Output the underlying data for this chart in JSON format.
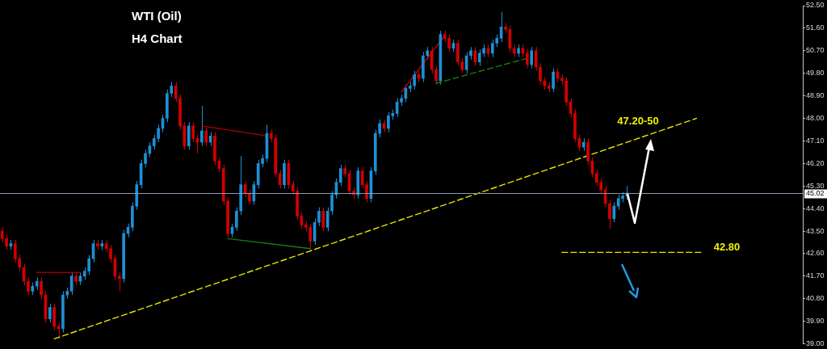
{
  "chart_data": {
    "type": "candlestick",
    "title": "WTI (Oil)",
    "subtitle": "H4 Chart",
    "categories": [
      null,
      null,
      null,
      null,
      null,
      null,
      null,
      null,
      null,
      null,
      null,
      null,
      null,
      null,
      null,
      null,
      null,
      null,
      null,
      null,
      null,
      null,
      null,
      null,
      null,
      null,
      null,
      null,
      null,
      null,
      null,
      null,
      null,
      null,
      null,
      null,
      null,
      null,
      null,
      null,
      null,
      null,
      null,
      null,
      null,
      null,
      null,
      null,
      null,
      null,
      null,
      null,
      null,
      null,
      null,
      null,
      null,
      null,
      null,
      null,
      null,
      null,
      null,
      null,
      null,
      null,
      null,
      null,
      null,
      null,
      null,
      null,
      null,
      null,
      null,
      null,
      null,
      null,
      null,
      null,
      null,
      null,
      null,
      null,
      null,
      null,
      null,
      null,
      null,
      null,
      null,
      null,
      null,
      null,
      null,
      null,
      null,
      null,
      null,
      null,
      null,
      null,
      null,
      null,
      null,
      null,
      null,
      null,
      null,
      null,
      null,
      null,
      null,
      null,
      null,
      null,
      null,
      null,
      null,
      null,
      null,
      null,
      null,
      null,
      null,
      null,
      null,
      null,
      null,
      null,
      null,
      null,
      null,
      null,
      null,
      null,
      null,
      null,
      null,
      null,
      null,
      null,
      null,
      null,
      null,
      null,
      null,
      null,
      null,
      null,
      null,
      null,
      null,
      null,
      null,
      null,
      null,
      null,
      null,
      null,
      null,
      null,
      null,
      null,
      null,
      null,
      null,
      null,
      null,
      null,
      null,
      null,
      null,
      null,
      null,
      null,
      null,
      null,
      null,
      null,
      null,
      null,
      null,
      null,
      null
    ],
    "ohlc": [
      [
        43.5,
        43.65,
        43.05,
        43.2
      ],
      [
        43.2,
        43.35,
        42.75,
        42.9
      ],
      [
        42.9,
        43.15,
        42.75,
        43.0
      ],
      [
        43.0,
        43.15,
        42.25,
        42.4
      ],
      [
        42.4,
        42.55,
        41.9,
        42.05
      ],
      [
        42.05,
        42.2,
        41.35,
        41.5
      ],
      [
        41.5,
        41.65,
        40.95,
        41.1
      ],
      [
        41.1,
        41.45,
        40.95,
        41.3
      ],
      [
        41.3,
        41.65,
        41.15,
        41.5
      ],
      [
        41.5,
        41.65,
        40.8,
        40.95
      ],
      [
        40.95,
        41.1,
        39.85,
        40.0
      ],
      [
        40.0,
        40.6,
        39.85,
        40.45
      ],
      [
        40.45,
        40.6,
        39.55,
        39.7
      ],
      [
        39.7,
        39.85,
        39.2,
        39.6
      ],
      [
        39.6,
        41.1,
        39.45,
        40.95
      ],
      [
        40.95,
        41.25,
        40.8,
        41.1
      ],
      [
        41.1,
        41.85,
        40.95,
        41.7
      ],
      [
        41.7,
        41.85,
        41.35,
        41.5
      ],
      [
        41.5,
        41.85,
        41.35,
        41.7
      ],
      [
        41.7,
        42.05,
        41.55,
        41.9
      ],
      [
        41.9,
        42.55,
        41.75,
        42.4
      ],
      [
        42.4,
        43.15,
        42.25,
        43.0
      ],
      [
        43.0,
        43.15,
        42.75,
        42.9
      ],
      [
        42.9,
        43.15,
        42.75,
        43.0
      ],
      [
        43.0,
        43.15,
        42.65,
        42.8
      ],
      [
        42.8,
        42.95,
        42.25,
        42.4
      ],
      [
        42.4,
        42.55,
        41.55,
        41.7
      ],
      [
        41.7,
        41.85,
        41.1,
        41.6
      ],
      [
        41.6,
        43.55,
        41.45,
        43.4
      ],
      [
        43.4,
        43.8,
        43.25,
        43.65
      ],
      [
        43.65,
        44.65,
        43.5,
        44.5
      ],
      [
        44.5,
        45.5,
        44.35,
        45.35
      ],
      [
        45.35,
        46.35,
        45.2,
        46.2
      ],
      [
        46.2,
        46.75,
        46.05,
        46.6
      ],
      [
        46.6,
        47.05,
        46.45,
        46.9
      ],
      [
        46.9,
        47.35,
        46.75,
        47.2
      ],
      [
        47.2,
        47.75,
        47.05,
        47.6
      ],
      [
        47.6,
        48.15,
        47.45,
        48.0
      ],
      [
        48.0,
        49.15,
        47.85,
        49.0
      ],
      [
        49.0,
        49.45,
        48.85,
        49.3
      ],
      [
        49.3,
        49.45,
        48.65,
        48.8
      ],
      [
        48.8,
        48.95,
        47.55,
        47.7
      ],
      [
        47.7,
        47.85,
        46.75,
        46.9
      ],
      [
        46.9,
        47.85,
        46.75,
        47.7
      ],
      [
        47.7,
        47.85,
        47.05,
        47.2
      ],
      [
        47.2,
        47.35,
        46.6,
        47.05
      ],
      [
        47.05,
        48.5,
        46.9,
        47.5
      ],
      [
        47.5,
        47.65,
        46.9,
        47.05
      ],
      [
        47.05,
        47.45,
        46.9,
        47.3
      ],
      [
        47.3,
        47.45,
        46.15,
        46.3
      ],
      [
        46.3,
        46.45,
        45.85,
        46.0
      ],
      [
        46.0,
        46.15,
        44.55,
        44.7
      ],
      [
        44.7,
        44.85,
        43.25,
        43.4
      ],
      [
        43.4,
        43.8,
        43.25,
        43.65
      ],
      [
        43.65,
        44.45,
        43.5,
        44.3
      ],
      [
        44.3,
        46.5,
        44.15,
        45.35
      ],
      [
        45.35,
        45.5,
        44.85,
        45.0
      ],
      [
        45.0,
        45.15,
        44.55,
        44.7
      ],
      [
        44.7,
        45.5,
        44.55,
        45.35
      ],
      [
        45.35,
        46.35,
        45.2,
        46.2
      ],
      [
        46.2,
        46.55,
        46.05,
        46.4
      ],
      [
        46.4,
        47.75,
        46.25,
        47.4
      ],
      [
        47.4,
        47.55,
        47.05,
        47.2
      ],
      [
        47.2,
        47.35,
        45.65,
        45.8
      ],
      [
        45.8,
        45.95,
        45.2,
        45.35
      ],
      [
        45.35,
        46.35,
        45.2,
        46.2
      ],
      [
        46.2,
        46.35,
        45.2,
        45.35
      ],
      [
        45.35,
        45.5,
        44.95,
        45.1
      ],
      [
        45.1,
        45.25,
        43.95,
        44.1
      ],
      [
        44.1,
        44.25,
        43.6,
        43.75
      ],
      [
        43.75,
        43.9,
        43.5,
        43.65
      ],
      [
        43.65,
        43.8,
        42.8,
        43.1
      ],
      [
        43.1,
        44.0,
        42.95,
        43.85
      ],
      [
        43.85,
        44.45,
        43.7,
        44.3
      ],
      [
        44.3,
        44.45,
        43.5,
        43.65
      ],
      [
        43.65,
        44.45,
        43.5,
        44.3
      ],
      [
        44.3,
        45.1,
        44.15,
        44.95
      ],
      [
        44.95,
        45.6,
        44.8,
        45.45
      ],
      [
        45.45,
        46.15,
        45.3,
        46.0
      ],
      [
        46.0,
        46.15,
        45.65,
        45.8
      ],
      [
        45.8,
        45.95,
        44.95,
        45.1
      ],
      [
        45.1,
        45.25,
        44.8,
        44.95
      ],
      [
        44.95,
        46.05,
        44.8,
        45.9
      ],
      [
        45.9,
        46.05,
        45.2,
        45.35
      ],
      [
        45.35,
        45.5,
        44.65,
        44.8
      ],
      [
        44.8,
        46.05,
        44.65,
        45.9
      ],
      [
        45.9,
        47.55,
        45.75,
        47.4
      ],
      [
        47.4,
        47.95,
        47.25,
        47.8
      ],
      [
        47.8,
        47.95,
        47.45,
        47.6
      ],
      [
        47.6,
        48.25,
        47.45,
        48.1
      ],
      [
        48.1,
        48.35,
        47.95,
        48.2
      ],
      [
        48.2,
        48.8,
        48.05,
        48.65
      ],
      [
        48.65,
        48.95,
        48.5,
        48.8
      ],
      [
        48.8,
        49.35,
        48.65,
        49.2
      ],
      [
        49.2,
        49.45,
        49.05,
        49.3
      ],
      [
        49.3,
        49.9,
        49.15,
        49.75
      ],
      [
        49.75,
        49.9,
        49.45,
        49.6
      ],
      [
        49.6,
        50.65,
        49.45,
        50.5
      ],
      [
        50.5,
        50.85,
        50.35,
        50.7
      ],
      [
        50.7,
        50.85,
        49.8,
        49.95
      ],
      [
        49.95,
        50.1,
        49.35,
        49.5
      ],
      [
        49.5,
        51.5,
        49.35,
        51.35
      ],
      [
        51.35,
        51.5,
        51.05,
        51.2
      ],
      [
        51.2,
        51.35,
        50.65,
        50.8
      ],
      [
        50.8,
        51.15,
        50.65,
        51.0
      ],
      [
        51.0,
        51.15,
        50.1,
        50.25
      ],
      [
        50.25,
        50.4,
        49.8,
        49.95
      ],
      [
        49.95,
        50.65,
        49.8,
        50.5
      ],
      [
        50.5,
        50.85,
        50.35,
        50.7
      ],
      [
        50.7,
        50.85,
        50.1,
        50.25
      ],
      [
        50.25,
        50.75,
        50.1,
        50.6
      ],
      [
        50.6,
        50.95,
        50.45,
        50.8
      ],
      [
        50.8,
        50.95,
        50.45,
        50.6
      ],
      [
        50.6,
        51.15,
        50.45,
        51.0
      ],
      [
        51.0,
        51.35,
        50.85,
        51.2
      ],
      [
        51.2,
        52.25,
        51.05,
        51.65
      ],
      [
        51.65,
        51.8,
        51.4,
        51.55
      ],
      [
        51.55,
        51.7,
        50.65,
        50.8
      ],
      [
        50.8,
        50.95,
        50.45,
        50.6
      ],
      [
        50.6,
        50.95,
        50.45,
        50.8
      ],
      [
        50.8,
        50.95,
        50.45,
        50.6
      ],
      [
        50.6,
        50.75,
        50.0,
        50.15
      ],
      [
        50.15,
        50.85,
        50.0,
        50.7
      ],
      [
        50.7,
        50.85,
        49.9,
        50.05
      ],
      [
        50.05,
        50.2,
        49.35,
        49.5
      ],
      [
        49.5,
        49.65,
        49.15,
        49.3
      ],
      [
        49.3,
        49.45,
        49.05,
        49.2
      ],
      [
        49.2,
        50.0,
        49.05,
        49.85
      ],
      [
        49.85,
        50.0,
        49.45,
        49.6
      ],
      [
        49.6,
        49.75,
        49.35,
        49.5
      ],
      [
        49.5,
        49.65,
        48.5,
        48.65
      ],
      [
        48.65,
        48.8,
        48.05,
        48.2
      ],
      [
        48.2,
        48.35,
        47.05,
        47.2
      ],
      [
        47.2,
        47.35,
        46.7,
        46.85
      ],
      [
        46.85,
        47.2,
        46.7,
        47.05
      ],
      [
        47.05,
        47.2,
        46.15,
        46.3
      ],
      [
        46.3,
        46.45,
        45.65,
        45.8
      ],
      [
        45.8,
        45.95,
        45.3,
        45.45
      ],
      [
        45.45,
        45.6,
        45.0,
        45.15
      ],
      [
        45.15,
        45.3,
        44.45,
        44.6
      ],
      [
        44.6,
        44.75,
        43.6,
        44.0
      ],
      [
        44.0,
        44.65,
        43.85,
        44.5
      ],
      [
        44.5,
        44.95,
        44.35,
        44.8
      ],
      [
        44.8,
        45.05,
        44.65,
        44.9
      ],
      [
        44.9,
        45.3,
        44.75,
        45.02
      ],
      null,
      null,
      null,
      null,
      null,
      null,
      null,
      null,
      null,
      null,
      null,
      null,
      null,
      null,
      null,
      null,
      null,
      null,
      null,
      null,
      null,
      null,
      null,
      null,
      null,
      null,
      null,
      null,
      null,
      null,
      null,
      null,
      null,
      null,
      null,
      null,
      null,
      null,
      null,
      null
    ],
    "colors": [
      "#d40000",
      "#d40000",
      "#1e8fd5",
      "#d40000",
      "#d40000",
      "#d40000",
      "#d40000",
      "#1e8fd5",
      "#1e8fd5",
      "#d40000",
      "#d40000",
      "#1e8fd5",
      "#d40000",
      "#d40000",
      "#1e8fd5",
      "#1e8fd5",
      "#1e8fd5",
      "#d40000",
      "#1e8fd5",
      "#1e8fd5",
      "#1e8fd5",
      "#1e8fd5",
      "#d40000",
      "#1e8fd5",
      "#d40000",
      "#d40000",
      "#d40000",
      "#d40000",
      "#1e8fd5",
      "#1e8fd5",
      "#1e8fd5",
      "#1e8fd5",
      "#1e8fd5",
      "#1e8fd5",
      "#1e8fd5",
      "#1e8fd5",
      "#1e8fd5",
      "#1e8fd5",
      "#1e8fd5",
      "#1e8fd5",
      "#d40000",
      "#d40000",
      "#d40000",
      "#1e8fd5",
      "#d40000",
      "#d40000",
      "#1e8fd5",
      "#d40000",
      "#1e8fd5",
      "#d40000",
      "#d40000",
      "#d40000",
      "#d40000",
      "#1e8fd5",
      "#1e8fd5",
      "#1e8fd5",
      "#d40000",
      "#d40000",
      "#1e8fd5",
      "#1e8fd5",
      "#1e8fd5",
      "#1e8fd5",
      "#d40000",
      "#d40000",
      "#d40000",
      "#1e8fd5",
      "#d40000",
      "#d40000",
      "#d40000",
      "#d40000",
      "#d40000",
      "#d40000",
      "#1e8fd5",
      "#1e8fd5",
      "#d40000",
      "#1e8fd5",
      "#1e8fd5",
      "#1e8fd5",
      "#1e8fd5",
      "#d40000",
      "#d40000",
      "#d40000",
      "#1e8fd5",
      "#d40000",
      "#d40000",
      "#1e8fd5",
      "#1e8fd5",
      "#1e8fd5",
      "#d40000",
      "#1e8fd5",
      "#1e8fd5",
      "#1e8fd5",
      "#1e8fd5",
      "#1e8fd5",
      "#1e8fd5",
      "#1e8fd5",
      "#d40000",
      "#1e8fd5",
      "#1e8fd5",
      "#d40000",
      "#d40000",
      "#1e8fd5",
      "#d40000",
      "#d40000",
      "#1e8fd5",
      "#d40000",
      "#d40000",
      "#1e8fd5",
      "#1e8fd5",
      "#d40000",
      "#1e8fd5",
      "#1e8fd5",
      "#d40000",
      "#1e8fd5",
      "#1e8fd5",
      "#1e8fd5",
      "#d40000",
      "#d40000",
      "#d40000",
      "#1e8fd5",
      "#d40000",
      "#d40000",
      "#1e8fd5",
      "#d40000",
      "#d40000",
      "#d40000",
      "#d40000",
      "#1e8fd5",
      "#d40000",
      "#d40000",
      "#d40000",
      "#d40000",
      "#d40000",
      "#d40000",
      "#1e8fd5",
      "#d40000",
      "#d40000",
      "#d40000",
      "#d40000",
      "#d40000",
      "#d40000",
      "#1e8fd5",
      "#1e8fd5",
      "#1e8fd5",
      "#1e8fd5",
      null,
      null,
      null,
      null,
      null,
      null,
      null,
      null,
      null,
      null,
      null,
      null,
      null,
      null,
      null,
      null,
      null,
      null,
      null,
      null,
      null,
      null,
      null,
      null,
      null,
      null,
      null,
      null,
      null,
      null,
      null,
      null,
      null,
      null,
      null,
      null,
      null,
      null,
      null,
      null
    ],
    "series": [
      {
        "type": "line",
        "values": [
          null,
          null,
          null,
          null,
          null,
          null,
          null,
          null,
          null,
          null,
          null,
          null,
          39.2,
          null,
          null,
          null,
          null,
          null,
          null,
          null,
          null,
          null,
          null,
          null,
          null,
          null,
          null,
          null,
          null,
          null,
          null,
          null,
          null,
          null,
          null,
          null,
          null,
          null,
          null,
          null,
          null,
          null,
          null,
          null,
          null,
          null,
          null,
          null,
          null,
          null,
          null,
          null,
          null,
          null,
          null,
          null,
          null,
          null,
          null,
          null,
          null,
          null,
          null,
          null,
          null,
          null,
          null,
          null,
          null,
          null,
          null,
          null,
          null,
          null,
          null,
          null,
          null,
          null,
          null,
          null,
          null,
          null,
          null,
          null,
          null,
          null,
          null,
          null,
          null,
          null,
          null,
          null,
          null,
          null,
          null,
          null,
          null,
          null,
          null,
          null,
          null,
          null,
          null,
          null,
          null,
          null,
          null,
          null,
          null,
          null,
          null,
          null,
          null,
          null,
          null,
          null,
          null,
          null,
          null,
          null,
          null,
          null,
          null,
          null,
          null,
          null,
          null,
          null,
          null,
          null,
          null,
          null,
          null,
          null,
          null,
          null,
          null,
          null,
          null,
          null,
          null,
          null,
          null,
          null,
          null,
          null,
          null,
          null,
          null,
          null,
          null,
          null,
          null,
          null,
          null,
          null,
          null,
          null,
          null,
          null,
          48.0,
          null,
          null,
          null,
          null,
          null,
          null,
          null,
          null,
          null,
          null,
          null,
          null,
          null,
          null,
          null,
          null,
          null,
          null,
          null,
          null,
          null,
          null,
          null,
          null
        ],
        "color": "#e6e600",
        "line_style": "dashed"
      },
      {
        "type": "line",
        "values": [
          null,
          null,
          null,
          null,
          null,
          null,
          null,
          null,
          null,
          null,
          null,
          null,
          null,
          null,
          null,
          null,
          null,
          null,
          null,
          null,
          null,
          null,
          null,
          null,
          null,
          null,
          null,
          null,
          null,
          null,
          null,
          null,
          null,
          null,
          null,
          null,
          null,
          null,
          null,
          null,
          null,
          null,
          null,
          null,
          null,
          null,
          null,
          null,
          null,
          null,
          null,
          null,
          null,
          null,
          null,
          null,
          null,
          null,
          null,
          null,
          null,
          null,
          null,
          null,
          null,
          null,
          null,
          null,
          null,
          null,
          null,
          null,
          null,
          null,
          null,
          null,
          null,
          null,
          null,
          null,
          null,
          null,
          null,
          null,
          null,
          null,
          null,
          null,
          null,
          null,
          null,
          null,
          null,
          null,
          null,
          null,
          null,
          null,
          null,
          null,
          null,
          null,
          null,
          null,
          null,
          null,
          null,
          null,
          null,
          null,
          null,
          null,
          null,
          null,
          null,
          null,
          null,
          null,
          null,
          null,
          null,
          null,
          null,
          null,
          null,
          null,
          null,
          null,
          null,
          42.65,
          null,
          null,
          null,
          null,
          null,
          null,
          null,
          null,
          null,
          null,
          null,
          null,
          null,
          null,
          null,
          null,
          null,
          null,
          null,
          null,
          null,
          null,
          null,
          null,
          null,
          null,
          null,
          null,
          null,
          null,
          null,
          42.65,
          null,
          null,
          null,
          null,
          null,
          null,
          null,
          null,
          null,
          null,
          null,
          null,
          null,
          null,
          null,
          null,
          null,
          null,
          null,
          null,
          null,
          null,
          null
        ],
        "color": "#e6e600",
        "line_style": "dashed"
      },
      {
        "type": "line",
        "values": [
          null,
          null,
          null,
          null,
          null,
          null,
          null,
          null,
          41.85,
          null,
          null,
          null,
          null,
          null,
          null,
          null,
          null,
          null,
          41.85,
          null,
          null,
          null,
          null,
          null,
          null,
          null,
          null,
          null,
          null,
          null,
          null,
          null,
          null,
          null,
          null,
          null,
          null,
          null,
          null,
          null,
          null,
          null,
          null,
          null,
          null,
          null,
          null,
          null,
          null,
          null,
          null,
          null,
          null,
          null,
          null,
          null,
          null,
          null,
          null,
          null,
          null,
          null,
          null,
          null,
          null,
          null,
          null,
          null,
          null,
          null,
          null,
          null,
          null,
          null,
          null,
          null,
          null,
          null,
          null,
          null,
          null,
          null,
          null,
          null,
          null,
          null,
          null,
          null,
          null,
          null,
          null,
          null,
          null,
          null,
          null,
          null,
          null,
          null,
          null,
          null,
          null,
          null,
          null,
          null,
          null,
          null,
          null,
          null,
          null,
          null,
          null,
          null,
          null,
          null,
          null,
          null,
          null,
          null,
          null,
          null,
          null,
          null,
          null,
          null,
          null,
          null,
          null,
          null,
          null,
          null,
          null,
          null,
          null,
          null,
          null,
          null,
          null,
          null,
          null,
          null,
          null,
          null,
          null,
          null,
          null,
          null,
          null,
          null,
          null,
          null,
          null,
          null,
          null,
          null,
          null,
          null,
          null,
          null,
          null,
          null,
          null,
          null,
          null,
          null,
          null,
          null,
          null,
          null,
          null,
          null,
          null,
          null,
          null,
          null,
          null,
          null,
          null,
          null,
          null,
          null,
          null,
          null,
          null,
          null,
          null
        ],
        "color": "#b00000",
        "line_style": "dotted"
      },
      {
        "type": "line",
        "values": [
          null,
          null,
          null,
          null,
          null,
          null,
          null,
          null,
          null,
          null,
          null,
          null,
          null,
          null,
          null,
          null,
          null,
          null,
          null,
          null,
          null,
          null,
          null,
          null,
          null,
          null,
          null,
          null,
          null,
          null,
          null,
          null,
          null,
          null,
          null,
          null,
          null,
          null,
          null,
          null,
          null,
          null,
          null,
          null,
          null,
          null,
          47.7,
          null,
          null,
          null,
          null,
          null,
          null,
          null,
          null,
          null,
          null,
          null,
          null,
          null,
          null,
          47.3,
          null,
          null,
          null,
          null,
          null,
          null,
          null,
          null,
          null,
          null,
          null,
          null,
          null,
          null,
          null,
          null,
          null,
          null,
          null,
          null,
          null,
          null,
          null,
          null,
          null,
          null,
          null,
          null,
          null,
          null,
          null,
          null,
          null,
          null,
          null,
          null,
          null,
          null,
          null,
          null,
          null,
          null,
          null,
          null,
          null,
          null,
          null,
          null,
          null,
          null,
          null,
          null,
          null,
          null,
          null,
          null,
          null,
          null,
          null,
          null,
          null,
          null,
          null,
          null,
          null,
          null,
          null,
          null,
          null,
          null,
          null,
          null,
          null,
          null,
          null,
          null,
          null,
          null,
          null,
          null,
          null,
          null,
          null,
          null,
          null,
          null,
          null,
          null,
          null,
          null,
          null,
          null,
          null,
          null,
          null,
          null,
          null,
          null,
          null,
          null,
          null,
          null,
          null,
          null,
          null,
          null,
          null,
          null,
          null,
          null,
          null,
          null,
          null,
          null,
          null,
          null,
          null,
          null,
          null,
          null,
          null,
          null,
          null
        ],
        "color": "#b00000",
        "line_style": "dotted"
      },
      {
        "type": "line",
        "values": [
          null,
          null,
          null,
          null,
          null,
          null,
          null,
          null,
          null,
          null,
          null,
          null,
          null,
          null,
          null,
          null,
          null,
          null,
          null,
          null,
          null,
          null,
          null,
          null,
          null,
          null,
          null,
          null,
          null,
          null,
          null,
          null,
          null,
          null,
          null,
          null,
          null,
          null,
          null,
          null,
          null,
          null,
          null,
          null,
          null,
          null,
          null,
          null,
          null,
          null,
          null,
          null,
          43.2,
          null,
          null,
          null,
          null,
          null,
          null,
          null,
          null,
          null,
          null,
          null,
          null,
          null,
          null,
          null,
          null,
          null,
          null,
          42.8,
          null,
          null,
          null,
          null,
          null,
          null,
          null,
          null,
          null,
          null,
          null,
          null,
          null,
          null,
          null,
          null,
          null,
          null,
          null,
          null,
          null,
          null,
          null,
          null,
          null,
          null,
          null,
          null,
          null,
          null,
          null,
          null,
          null,
          null,
          null,
          null,
          null,
          null,
          null,
          null,
          null,
          null,
          null,
          null,
          null,
          null,
          null,
          null,
          null,
          null,
          null,
          null,
          null,
          null,
          null,
          null,
          null,
          null,
          null,
          null,
          null,
          null,
          null,
          null,
          null,
          null,
          null,
          null,
          null,
          null,
          null,
          null,
          null,
          null,
          null,
          null,
          null,
          null,
          null,
          null,
          null,
          null,
          null,
          null,
          null,
          null,
          null,
          null,
          null,
          null,
          null,
          null,
          null,
          null,
          null,
          null,
          null,
          null,
          null,
          null,
          null,
          null,
          null,
          null,
          null,
          null,
          null,
          null,
          null,
          null,
          null,
          null,
          null
        ],
        "color": "#1a7a1a",
        "line_style": "solid"
      },
      {
        "type": "line",
        "values": [
          null,
          null,
          null,
          null,
          null,
          null,
          null,
          null,
          null,
          null,
          null,
          null,
          null,
          null,
          null,
          null,
          null,
          null,
          null,
          null,
          null,
          null,
          null,
          null,
          null,
          null,
          null,
          null,
          null,
          null,
          null,
          null,
          null,
          null,
          null,
          null,
          null,
          null,
          null,
          null,
          null,
          null,
          null,
          null,
          null,
          null,
          null,
          null,
          null,
          null,
          null,
          null,
          null,
          null,
          null,
          null,
          null,
          null,
          null,
          null,
          null,
          null,
          null,
          null,
          null,
          null,
          null,
          null,
          null,
          null,
          null,
          null,
          null,
          null,
          null,
          null,
          null,
          null,
          null,
          null,
          null,
          null,
          null,
          null,
          null,
          null,
          null,
          null,
          null,
          null,
          null,
          null,
          49.05,
          null,
          null,
          null,
          null,
          null,
          null,
          null,
          null,
          null,
          51.3,
          null,
          null,
          null,
          null,
          null,
          null,
          null,
          null,
          null,
          null,
          null,
          null,
          null,
          null,
          null,
          null,
          null,
          null,
          null,
          null,
          null,
          null,
          null,
          null,
          null,
          null,
          null,
          null,
          null,
          null,
          null,
          null,
          null,
          null,
          null,
          null,
          null,
          null,
          null,
          null,
          null,
          null,
          null,
          null,
          null,
          null,
          null,
          null,
          null,
          null,
          null,
          null,
          null,
          null,
          null,
          null,
          null,
          null,
          null,
          null,
          null,
          null,
          null,
          null,
          null,
          null,
          null,
          null,
          null,
          null,
          null,
          null,
          null,
          null,
          null,
          null,
          null,
          null,
          null,
          null,
          null,
          null
        ],
        "color": "#b00000",
        "line_style": "solid"
      },
      {
        "type": "line",
        "values": [
          null,
          null,
          null,
          null,
          null,
          null,
          null,
          null,
          null,
          null,
          null,
          null,
          null,
          null,
          null,
          null,
          null,
          null,
          null,
          null,
          null,
          null,
          null,
          null,
          null,
          null,
          null,
          null,
          null,
          null,
          null,
          null,
          null,
          null,
          null,
          null,
          null,
          null,
          null,
          null,
          null,
          null,
          null,
          null,
          null,
          null,
          null,
          null,
          null,
          null,
          null,
          null,
          null,
          null,
          null,
          null,
          null,
          null,
          null,
          null,
          null,
          null,
          null,
          null,
          null,
          null,
          null,
          null,
          null,
          null,
          null,
          null,
          null,
          null,
          null,
          null,
          null,
          null,
          null,
          null,
          null,
          null,
          null,
          null,
          null,
          null,
          null,
          null,
          null,
          null,
          null,
          null,
          null,
          null,
          null,
          null,
          null,
          null,
          null,
          null,
          49.4,
          null,
          null,
          null,
          null,
          null,
          null,
          null,
          null,
          null,
          null,
          null,
          null,
          null,
          null,
          null,
          null,
          null,
          null,
          null,
          null,
          null,
          50.45,
          null,
          null,
          null,
          null,
          null,
          null,
          null,
          null,
          null,
          null,
          null,
          null,
          null,
          null,
          null,
          null,
          null,
          null,
          null,
          null,
          null,
          null,
          null,
          null,
          null,
          null,
          null,
          null,
          null,
          null,
          null,
          null,
          null,
          null,
          null,
          null,
          null,
          null,
          null,
          null,
          null,
          null,
          null,
          null,
          null,
          null,
          null,
          null,
          null,
          null,
          null,
          null,
          null,
          null,
          null,
          null,
          null,
          null,
          null,
          null,
          null,
          null
        ],
        "color": "#1a7a1a",
        "line_style": "dashed"
      }
    ],
    "ref_lines": [
      {
        "axis": "y",
        "value": 45.02,
        "label": "45.02",
        "color": "#8a9bb0"
      }
    ],
    "annotations": [
      "47.20-50",
      "42.80"
    ],
    "ylim": [
      39.0,
      52.5
    ],
    "yticks": [
      {
        "value": 39.0,
        "label": "39.00"
      },
      {
        "value": 39.9,
        "label": "39.90"
      },
      {
        "value": 40.8,
        "label": "40.80"
      },
      {
        "value": 41.7,
        "label": "41.70"
      },
      {
        "value": 42.6,
        "label": "42.60"
      },
      {
        "value": 43.5,
        "label": "43.50"
      },
      {
        "value": 44.4,
        "label": "44.40"
      },
      {
        "value": 45.3,
        "label": "45.30"
      },
      {
        "value": 46.2,
        "label": "46.20"
      },
      {
        "value": 47.1,
        "label": "47.10"
      },
      {
        "value": 48.0,
        "label": "48.00"
      },
      {
        "value": 48.9,
        "label": "48.90"
      },
      {
        "value": 49.8,
        "label": "49.80"
      },
      {
        "value": 50.7,
        "label": "50.70"
      },
      {
        "value": 51.6,
        "label": "51.60"
      },
      {
        "value": 52.5,
        "label": "52.50"
      }
    ],
    "tick_labels": "y",
    "grid": false,
    "legend": false
  }
}
